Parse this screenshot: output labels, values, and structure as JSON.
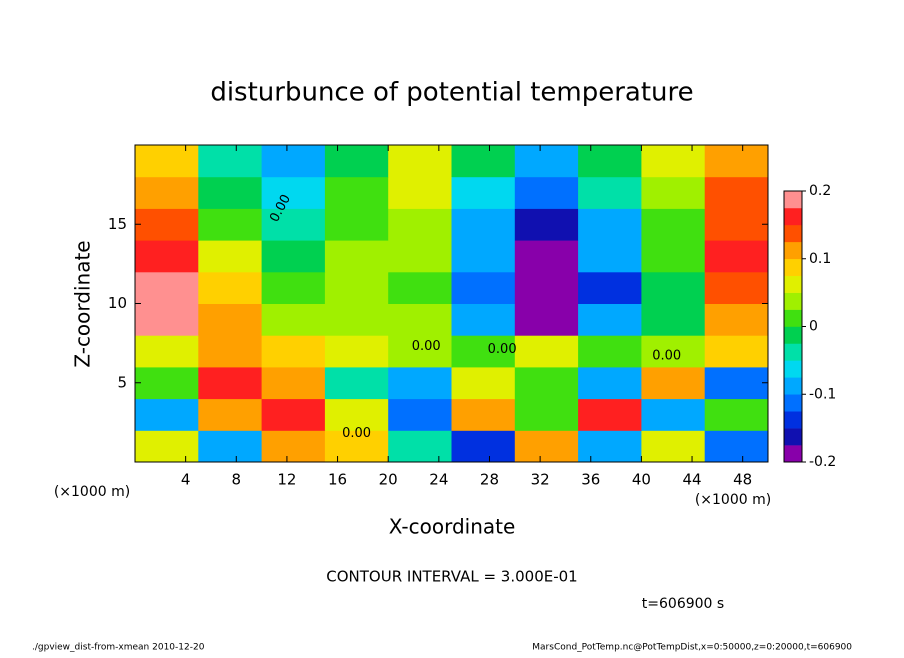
{
  "chart_data": {
    "type": "heatmap",
    "title": "disturbunce of potential temperature",
    "x_label": "X-coordinate",
    "y_label": "Z-coordinate",
    "x_unit": "(×1000 m)",
    "y_unit": "(×1000 m)",
    "xlim": [
      0,
      50
    ],
    "ylim": [
      0,
      20
    ],
    "xticks": [
      4,
      8,
      12,
      16,
      20,
      24,
      28,
      32,
      36,
      40,
      44,
      48
    ],
    "yticks": [
      5,
      10,
      15
    ],
    "x": [
      2.5,
      7.5,
      12.5,
      17.5,
      22.5,
      27.5,
      32.5,
      37.5,
      42.5,
      47.5
    ],
    "y": [
      1,
      3,
      5,
      7,
      9,
      11,
      13,
      15,
      17,
      19
    ],
    "z": [
      [
        0.05,
        -0.1,
        0.1,
        0.08,
        -0.05,
        -0.15,
        0.1,
        -0.1,
        0.05,
        -0.12
      ],
      [
        -0.1,
        0.12,
        0.15,
        0.05,
        -0.12,
        0.1,
        0.0,
        0.15,
        -0.08,
        0.0
      ],
      [
        0.02,
        0.15,
        0.1,
        -0.05,
        -0.1,
        0.05,
        0.0,
        -0.1,
        0.1,
        -0.12
      ],
      [
        0.05,
        0.1,
        0.08,
        0.06,
        0.04,
        0.02,
        0.05,
        0.0,
        0.04,
        0.08
      ],
      [
        0.2,
        0.12,
        0.04,
        0.04,
        0.03,
        -0.08,
        -0.2,
        -0.1,
        -0.02,
        0.1
      ],
      [
        0.18,
        0.08,
        0.01,
        0.03,
        0.02,
        -0.12,
        -0.2,
        -0.13,
        -0.02,
        0.14
      ],
      [
        0.15,
        0.05,
        -0.01,
        0.03,
        0.03,
        -0.1,
        -0.2,
        -0.1,
        0.0,
        0.15
      ],
      [
        0.13,
        0.02,
        -0.03,
        0.02,
        0.04,
        -0.08,
        -0.16,
        -0.08,
        0.02,
        0.14
      ],
      [
        0.1,
        -0.02,
        -0.06,
        0.0,
        0.05,
        -0.06,
        -0.12,
        -0.05,
        0.04,
        0.13
      ],
      [
        0.08,
        -0.05,
        -0.08,
        -0.02,
        0.06,
        -0.02,
        -0.08,
        -0.02,
        0.05,
        0.12
      ]
    ],
    "colorbar": {
      "lim": [
        -0.2,
        0.2
      ],
      "ticks": [
        -0.2,
        -0.1,
        0,
        0.1,
        0.2
      ],
      "levels": [
        -0.2,
        -0.175,
        -0.15,
        -0.125,
        -0.1,
        -0.075,
        -0.05,
        -0.025,
        0,
        0.025,
        0.05,
        0.075,
        0.1,
        0.125,
        0.15,
        0.175,
        0.2
      ],
      "colors": [
        "#8800aa",
        "#1010b0",
        "#0030e0",
        "#0070ff",
        "#00a8ff",
        "#00d8f0",
        "#00e0a8",
        "#00d050",
        "#40e010",
        "#a0f000",
        "#e0f000",
        "#ffd000",
        "#ffa000",
        "#ff5000",
        "#ff2020",
        "#ff9090"
      ]
    },
    "contour_label": "0.00",
    "contour_interval": "CONTOUR INTERVAL = 3.000E-01",
    "time_label": "t=606900 s",
    "footer_left": "./gpview_dist-from-xmean  2010-12-20",
    "footer_right": "MarsCond_PotTemp.nc@PotTempDist,x=0:50000,z=0:20000,t=606900"
  }
}
